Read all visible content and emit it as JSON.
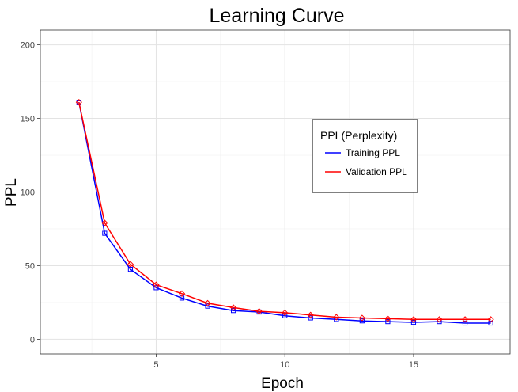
{
  "chart_data": {
    "type": "line",
    "title": "Learning Curve",
    "xlabel": "Epoch",
    "ylabel": "PPL",
    "xlim": [
      0.5,
      18.75
    ],
    "ylim": [
      -10,
      210
    ],
    "x_ticks": [
      5,
      10,
      15
    ],
    "y_ticks": [
      0,
      50,
      100,
      150,
      200
    ],
    "grid": true,
    "legend": {
      "title": "PPL(Perplexity)",
      "placement": "inside-right"
    },
    "x": [
      2,
      3,
      4,
      5,
      6,
      7,
      8,
      9,
      10,
      11,
      12,
      13,
      14,
      15,
      16,
      17,
      18
    ],
    "series": [
      {
        "name": "Training PPL",
        "color": "#0000ff",
        "marker": "square",
        "values": [
          161,
          72,
          47.5,
          35,
          28,
          22.5,
          19.5,
          18.5,
          16,
          14.5,
          13.5,
          12.5,
          12,
          11.5,
          12,
          11,
          11
        ]
      },
      {
        "name": "Validation PPL",
        "color": "#ff0000",
        "marker": "diamond",
        "values": [
          161,
          79,
          51,
          37,
          31,
          24.5,
          21.5,
          19,
          18,
          16.5,
          15,
          14.5,
          14,
          13.5,
          13.5,
          13.5,
          13.5
        ]
      }
    ]
  }
}
